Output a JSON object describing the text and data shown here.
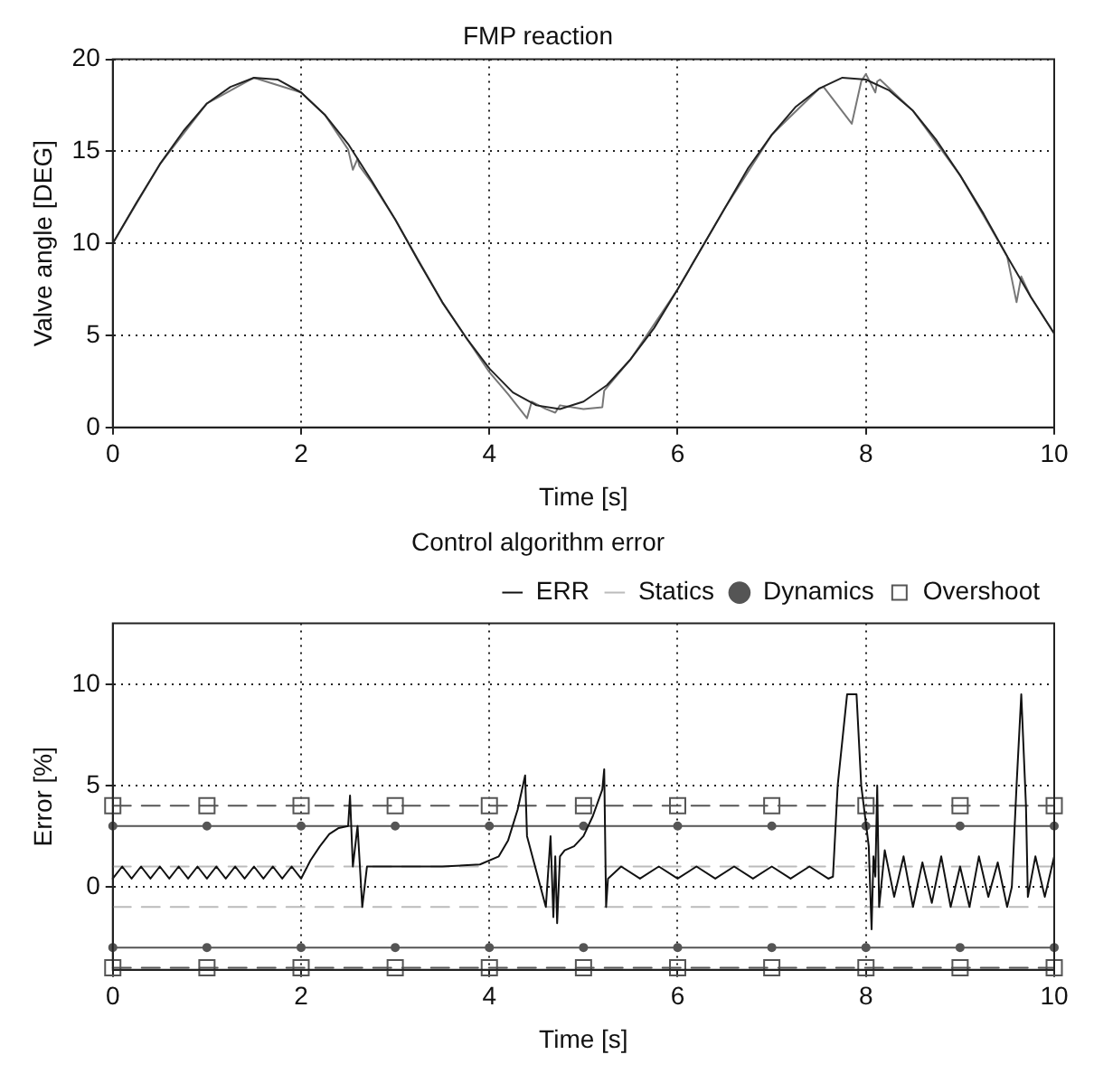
{
  "chart_data": [
    {
      "type": "line",
      "title": "FMP reaction",
      "xlabel": "Time [s]",
      "ylabel": "Valve angle [DEG]",
      "xlim": [
        0,
        10
      ],
      "ylim": [
        0,
        20
      ],
      "xticks": [
        0,
        2,
        4,
        6,
        8,
        10
      ],
      "yticks": [
        0,
        5,
        10,
        15,
        20
      ],
      "grid": true,
      "legend": false,
      "marker": "none",
      "line_style": "solid",
      "series": [
        {
          "color": "#222222",
          "x": [
            0,
            0.25,
            0.5,
            0.75,
            1,
            1.25,
            1.5,
            1.75,
            2,
            2.25,
            2.5,
            2.75,
            3,
            3.25,
            3.5,
            3.75,
            4,
            4.25,
            4.5,
            4.75,
            5,
            5.25,
            5.5,
            5.75,
            6,
            6.25,
            6.5,
            6.75,
            7,
            7.25,
            7.5,
            7.75,
            8,
            8.25,
            8.5,
            8.75,
            9,
            9.25,
            9.5,
            9.75,
            10
          ],
          "values": [
            10,
            12.2,
            14.3,
            16.1,
            17.6,
            18.5,
            19,
            18.9,
            18.2,
            17,
            15.4,
            13.4,
            11.3,
            9,
            6.8,
            4.9,
            3.2,
            1.9,
            1.2,
            1,
            1.4,
            2.3,
            3.7,
            5.4,
            7.5,
            9.7,
            11.9,
            14.1,
            15.9,
            17.4,
            18.4,
            19,
            18.9,
            18.3,
            17.2,
            15.6,
            13.7,
            11.6,
            9.3,
            7.1,
            5.1
          ]
        },
        {
          "color": "#777777",
          "x": [
            0,
            0.5,
            1,
            1.5,
            2,
            2.25,
            2.5,
            2.55,
            2.6,
            2.62,
            2.75,
            3,
            3.5,
            4,
            4.2,
            4.4,
            4.45,
            4.6,
            4.7,
            4.75,
            5,
            5.2,
            5.22,
            5.5,
            6,
            6.5,
            7,
            7.5,
            7.55,
            7.85,
            7.95,
            8.0,
            8.1,
            8.12,
            8.15,
            8.5,
            9,
            9.5,
            9.6,
            9.65,
            9.75,
            10
          ],
          "values": [
            10,
            14.3,
            17.6,
            19,
            18.2,
            17,
            15.1,
            14,
            14.6,
            14.2,
            13.3,
            11.3,
            6.8,
            3.0,
            1.8,
            0.5,
            1.4,
            1.0,
            0.8,
            1.2,
            1.0,
            1.1,
            2.0,
            3.7,
            7.5,
            11.9,
            15.9,
            18.4,
            18.5,
            16.5,
            18.8,
            19.2,
            18.2,
            18.8,
            18.9,
            17.2,
            13.7,
            9.3,
            6.8,
            8.2,
            7.1,
            5.1
          ]
        }
      ]
    },
    {
      "type": "line",
      "title": "Control algorithm error",
      "xlabel": "Time [s]",
      "ylabel": "Error [%]",
      "xlim": [
        0,
        10
      ],
      "ylim": [
        -4.1,
        13
      ],
      "xticks": [
        0,
        2,
        4,
        6,
        8,
        10
      ],
      "yticks": [
        0,
        5,
        10
      ],
      "grid": true,
      "legend": "top right",
      "series": [
        {
          "name": "ERR",
          "color": "#111111",
          "marker": "none",
          "line_style": "solid",
          "x": [
            0,
            0.1,
            0.2,
            0.3,
            0.4,
            0.5,
            0.6,
            0.7,
            0.8,
            0.9,
            1,
            1.1,
            1.2,
            1.3,
            1.4,
            1.5,
            1.6,
            1.7,
            1.8,
            1.9,
            2,
            2.1,
            2.2,
            2.3,
            2.4,
            2.5,
            2.52,
            2.55,
            2.6,
            2.65,
            2.7,
            3,
            3.5,
            3.9,
            4.1,
            4.2,
            4.3,
            4.38,
            4.4,
            4.6,
            4.65,
            4.68,
            4.7,
            4.72,
            4.75,
            4.8,
            4.9,
            5,
            5.1,
            5.2,
            5.22,
            5.24,
            5.26,
            5.4,
            5.6,
            5.8,
            6,
            6.2,
            6.4,
            6.6,
            6.8,
            7,
            7.2,
            7.4,
            7.6,
            7.65,
            7.7,
            7.8,
            7.9,
            7.95,
            8.03,
            8.06,
            8.08,
            8.1,
            8.12,
            8.14,
            8.2,
            8.3,
            8.4,
            8.5,
            8.6,
            8.7,
            8.8,
            8.9,
            9,
            9.1,
            9.2,
            9.3,
            9.4,
            9.5,
            9.55,
            9.6,
            9.65,
            9.7,
            9.72,
            9.8,
            9.9,
            10
          ],
          "values": [
            0.4,
            1,
            0.4,
            1,
            0.4,
            1,
            0.4,
            1,
            0.4,
            1,
            0.4,
            1,
            0.4,
            1,
            0.4,
            1,
            0.4,
            1,
            0.4,
            1,
            0.4,
            1.3,
            2,
            2.6,
            2.9,
            3,
            4.5,
            1,
            3,
            -1,
            1,
            1,
            1,
            1.1,
            1.5,
            2.3,
            3.8,
            5.5,
            2.5,
            -1,
            2.5,
            -1.5,
            1.5,
            -1.8,
            1.5,
            1.8,
            2,
            2.5,
            3.5,
            4.8,
            5.8,
            -1,
            0.4,
            1,
            0.4,
            1,
            0.4,
            1,
            0.4,
            1,
            0.4,
            1,
            0.4,
            1,
            0.4,
            0.5,
            5,
            9.5,
            9.5,
            5,
            2,
            -2.1,
            1.5,
            0.5,
            5,
            -1,
            1.8,
            -0.5,
            1.5,
            -1,
            1.2,
            -0.8,
            1.5,
            -1,
            1,
            -1,
            1.5,
            -0.5,
            1.2,
            -1,
            0,
            5,
            9.5,
            4,
            -0.5,
            1.5,
            -0.5,
            1.5
          ]
        },
        {
          "name": "Statics",
          "color": "#bbbbbb",
          "marker": "none",
          "line_style": "dashed",
          "x": [
            0,
            10
          ],
          "values": [
            1,
            1
          ]
        },
        {
          "name": "Dynamics",
          "color": "#555555",
          "marker": "circle",
          "line_style": "solid",
          "x": [
            0,
            1,
            2,
            3,
            4,
            5,
            6,
            7,
            8,
            9,
            10
          ],
          "values": [
            3,
            3,
            3,
            3,
            3,
            3,
            3,
            3,
            3,
            3,
            3
          ]
        },
        {
          "name": "Overshoot",
          "color": "#555555",
          "marker": "square",
          "line_style": "dashed",
          "x": [
            0,
            1,
            2,
            3,
            4,
            5,
            6,
            7,
            8,
            9,
            10
          ],
          "values": [
            4,
            4,
            4,
            4,
            4,
            4,
            4,
            4,
            4,
            4,
            4
          ]
        },
        {
          "color": "#bbbbbb",
          "marker": "none",
          "line_style": "dashed",
          "x": [
            0,
            10
          ],
          "values": [
            -1,
            -1
          ]
        },
        {
          "color": "#555555",
          "marker": "circle",
          "line_style": "solid",
          "x": [
            0,
            1,
            2,
            3,
            4,
            5,
            6,
            7,
            8,
            9,
            10
          ],
          "values": [
            -3,
            -3,
            -3,
            -3,
            -3,
            -3,
            -3,
            -3,
            -3,
            -3,
            -3
          ]
        },
        {
          "color": "#555555",
          "marker": "square",
          "line_style": "dashed",
          "x": [
            0,
            1,
            2,
            3,
            4,
            5,
            6,
            7,
            8,
            9,
            10
          ],
          "values": [
            -4,
            -4,
            -4,
            -4,
            -4,
            -4,
            -4,
            -4,
            -4,
            -4,
            -4
          ]
        }
      ]
    }
  ]
}
